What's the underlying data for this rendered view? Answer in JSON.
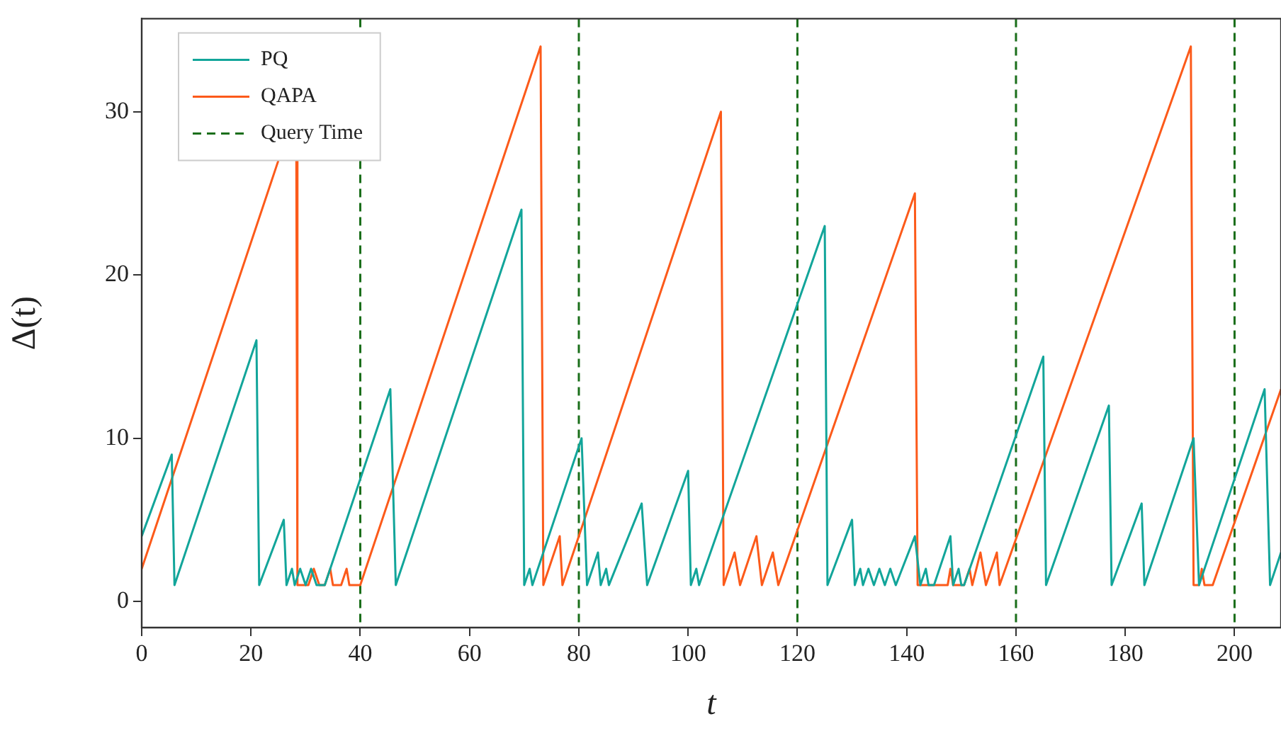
{
  "chart_data": {
    "type": "line",
    "xlabel": "t",
    "ylabel": "Δ(t)",
    "xlim": [
      0,
      208.5
    ],
    "ylim": [
      -1.6,
      35.7
    ],
    "xticks": [
      0,
      20,
      40,
      60,
      80,
      100,
      120,
      140,
      160,
      180,
      200
    ],
    "yticks": [
      0,
      10,
      20,
      30
    ],
    "grid": false,
    "legend": "top left",
    "marker": "none",
    "line_style": "solid",
    "series": [
      {
        "name": "PQ",
        "color": "#12a59a",
        "x": [
          0,
          5.5,
          6,
          21,
          21.5,
          26,
          26.5,
          27.5,
          28,
          29,
          30,
          31,
          32,
          33.5,
          45.5,
          46.5,
          69.5,
          70,
          71,
          71.5,
          80.5,
          81.5,
          83.5,
          84,
          85,
          85.5,
          91.5,
          92.5,
          100,
          100.5,
          101.5,
          102,
          125,
          125.5,
          130,
          130.5,
          131.5,
          132,
          133,
          134,
          135,
          136,
          137,
          138,
          141.5,
          142.5,
          143.5,
          144,
          145,
          148,
          148.5,
          149.5,
          150,
          150.5,
          165,
          165.5,
          177,
          177.5,
          183,
          183.5,
          192.5,
          193.5,
          205.5,
          206.5,
          208.5
        ],
        "values": [
          4,
          9,
          1,
          16,
          1,
          5,
          1,
          2,
          1,
          2,
          1,
          2,
          1,
          1,
          13,
          1,
          24,
          1,
          2,
          1,
          10,
          1,
          3,
          1,
          2,
          1,
          6,
          1,
          8,
          1,
          2,
          1,
          23,
          1,
          5,
          1,
          2,
          1,
          2,
          1,
          2,
          1,
          2,
          1,
          4,
          1,
          2,
          1,
          1,
          4,
          1,
          2,
          1,
          1,
          15,
          1,
          12,
          1,
          6,
          1,
          10,
          1,
          13,
          1,
          3
        ]
      },
      {
        "name": "QAPA",
        "color": "#fc5a1a",
        "x": [
          0,
          25,
          27,
          28.3,
          28.5,
          30.5,
          31.5,
          32.5,
          33.5,
          34.5,
          35,
          36.5,
          37.5,
          38,
          40,
          73,
          73.5,
          76.5,
          77,
          106,
          106.5,
          108.5,
          109.5,
          112.5,
          113.5,
          115.5,
          116.5,
          141.5,
          142,
          147.5,
          148,
          148.5,
          150.5,
          151.5,
          152,
          153.5,
          154.5,
          156.5,
          157,
          192,
          192.5,
          193.5,
          194,
          194.5,
          196,
          208.5
        ],
        "values": [
          2,
          27,
          null,
          27,
          1,
          1,
          2,
          1,
          1,
          2,
          1,
          1,
          2,
          1,
          1,
          34,
          1,
          4,
          1,
          30,
          1,
          3,
          1,
          4,
          1,
          3,
          1,
          25,
          1,
          1,
          2,
          1,
          1,
          2,
          1,
          3,
          1,
          3,
          1,
          34,
          1,
          1,
          2,
          1,
          1,
          13
        ]
      }
    ],
    "ref_lines": [
      {
        "axis": "x",
        "value": 40,
        "label": "Query Time",
        "color": "#1a6e1a",
        "line_style": "dashed"
      },
      {
        "axis": "x",
        "value": 80,
        "color": "#1a6e1a",
        "line_style": "dashed"
      },
      {
        "axis": "x",
        "value": 120,
        "color": "#1a6e1a",
        "line_style": "dashed"
      },
      {
        "axis": "x",
        "value": 160,
        "color": "#1a6e1a",
        "line_style": "dashed"
      },
      {
        "axis": "x",
        "value": 200,
        "color": "#1a6e1a",
        "line_style": "dashed"
      }
    ]
  }
}
